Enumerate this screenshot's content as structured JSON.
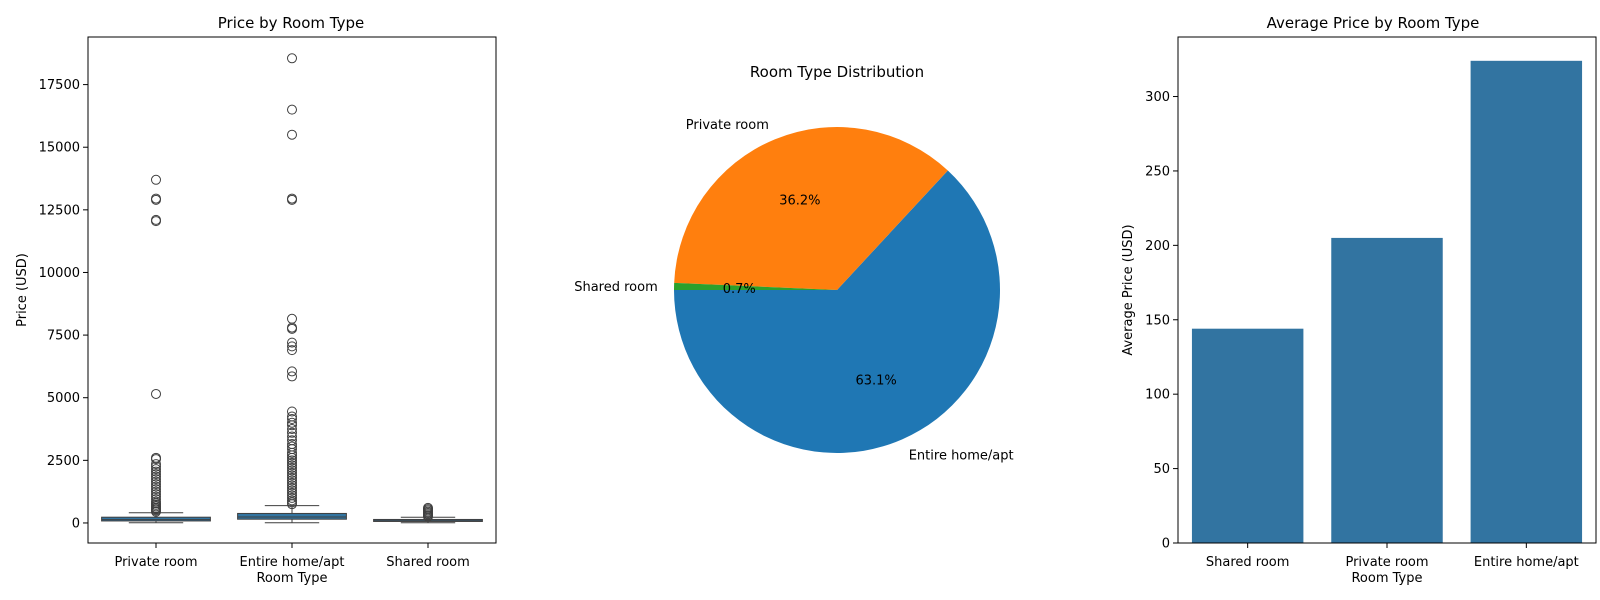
{
  "chart_data": [
    {
      "type": "box",
      "title": "Price by Room Type",
      "xlabel": "Room Type",
      "ylabel": "Price (USD)",
      "ylim": [
        -800,
        19400
      ],
      "yticks": [
        0,
        2500,
        5000,
        7500,
        10000,
        12500,
        15000,
        17500
      ],
      "categories": [
        "Private room",
        "Entire home/apt",
        "Shared room"
      ],
      "color": "#3274a1",
      "boxes": [
        {
          "q1": 80,
          "median": 135,
          "q3": 230,
          "whisker_low": 10,
          "whisker_high": 410,
          "outliers": [
            13700,
            12950,
            12900,
            12100,
            12050,
            5150,
            2600,
            2550,
            2350,
            2250,
            2150,
            2050,
            1950,
            1850,
            1750,
            1650,
            1550,
            1450,
            1350,
            1250,
            1150,
            1050,
            950,
            850,
            780,
            720,
            660,
            600,
            550,
            500,
            450
          ]
        },
        {
          "q1": 150,
          "median": 240,
          "q3": 380,
          "whisker_low": 10,
          "whisker_high": 690,
          "outliers": [
            18550,
            16500,
            15500,
            12950,
            12900,
            8150,
            7800,
            7750,
            7200,
            7050,
            6900,
            6050,
            5850,
            4450,
            4250,
            4150,
            4000,
            3900,
            3750,
            3600,
            3450,
            3300,
            3150,
            3050,
            2950,
            2800,
            2700,
            2600,
            2500,
            2400,
            2300,
            2200,
            2100,
            2000,
            1900,
            1800,
            1700,
            1600,
            1500,
            1400,
            1300,
            1200,
            1100,
            1000,
            900,
            820,
            750
          ]
        },
        {
          "q1": 60,
          "median": 90,
          "q3": 140,
          "whisker_low": 10,
          "whisker_high": 230,
          "outliers": [
            600,
            550,
            500,
            450,
            400,
            350,
            300,
            260
          ]
        }
      ]
    },
    {
      "type": "pie",
      "title": "Room Type Distribution",
      "slices": [
        {
          "label": "Entire home/apt",
          "value": 63.1,
          "pct_label": "63.1%",
          "color": "#1f77b4"
        },
        {
          "label": "Private room",
          "value": 36.2,
          "pct_label": "36.2%",
          "color": "#ff7f0e"
        },
        {
          "label": "Shared room",
          "value": 0.7,
          "pct_label": "0.7%",
          "color": "#2ca02c"
        }
      ]
    },
    {
      "type": "bar",
      "title": "Average Price by Room Type",
      "xlabel": "Room Type",
      "ylabel": "Average Price (USD)",
      "ylim": [
        0,
        340
      ],
      "yticks": [
        0,
        50,
        100,
        150,
        200,
        250,
        300
      ],
      "categories": [
        "Shared room",
        "Private room",
        "Entire home/apt"
      ],
      "values": [
        144,
        205,
        324
      ],
      "color": "#3274a1"
    }
  ]
}
